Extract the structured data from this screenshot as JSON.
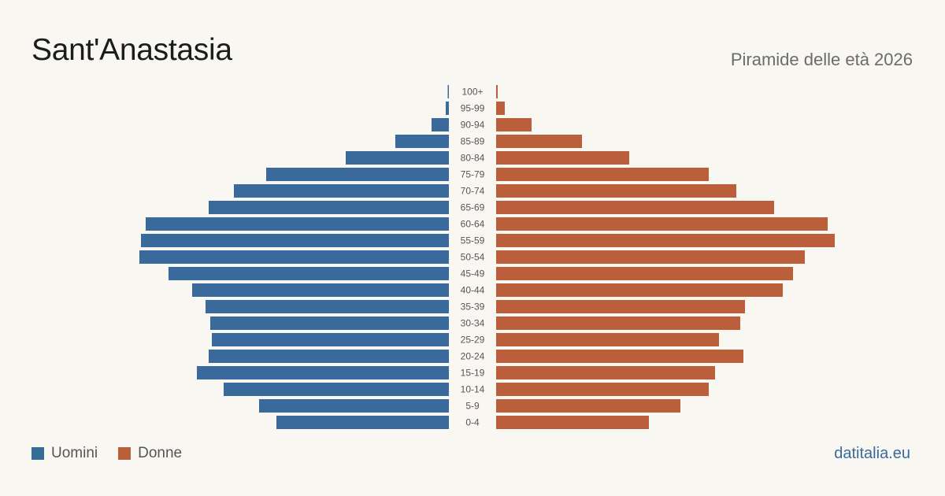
{
  "header": {
    "title": "Sant'Anastasia",
    "subtitle": "Piramide delle età 2026"
  },
  "legend": {
    "men_label": "Uomini",
    "women_label": "Donne"
  },
  "brand": "datitalia.eu",
  "colors": {
    "men": "#3a6a9b",
    "women": "#bb5e3c",
    "background": "#f9f7f2"
  },
  "chart_data": {
    "type": "bar",
    "orientation": "horizontal-pyramid",
    "categories": [
      "100+",
      "95-99",
      "90-94",
      "85-89",
      "80-84",
      "75-79",
      "70-74",
      "65-69",
      "60-64",
      "55-59",
      "50-54",
      "45-49",
      "40-44",
      "35-39",
      "30-34",
      "25-29",
      "20-24",
      "15-19",
      "10-14",
      "5-9",
      "0-4"
    ],
    "series": [
      {
        "name": "Uomini",
        "values": [
          1,
          4,
          22,
          68,
          131,
          232,
          273,
          305,
          385,
          391,
          393,
          356,
          326,
          309,
          303,
          301,
          305,
          320,
          286,
          241,
          219
        ]
      },
      {
        "name": "Donne",
        "values": [
          2,
          11,
          45,
          109,
          169,
          270,
          305,
          353,
          421,
          430,
          392,
          377,
          364,
          316,
          310,
          283,
          314,
          278,
          270,
          234,
          194
        ]
      }
    ],
    "legend": "bottom-left",
    "grid": false
  }
}
